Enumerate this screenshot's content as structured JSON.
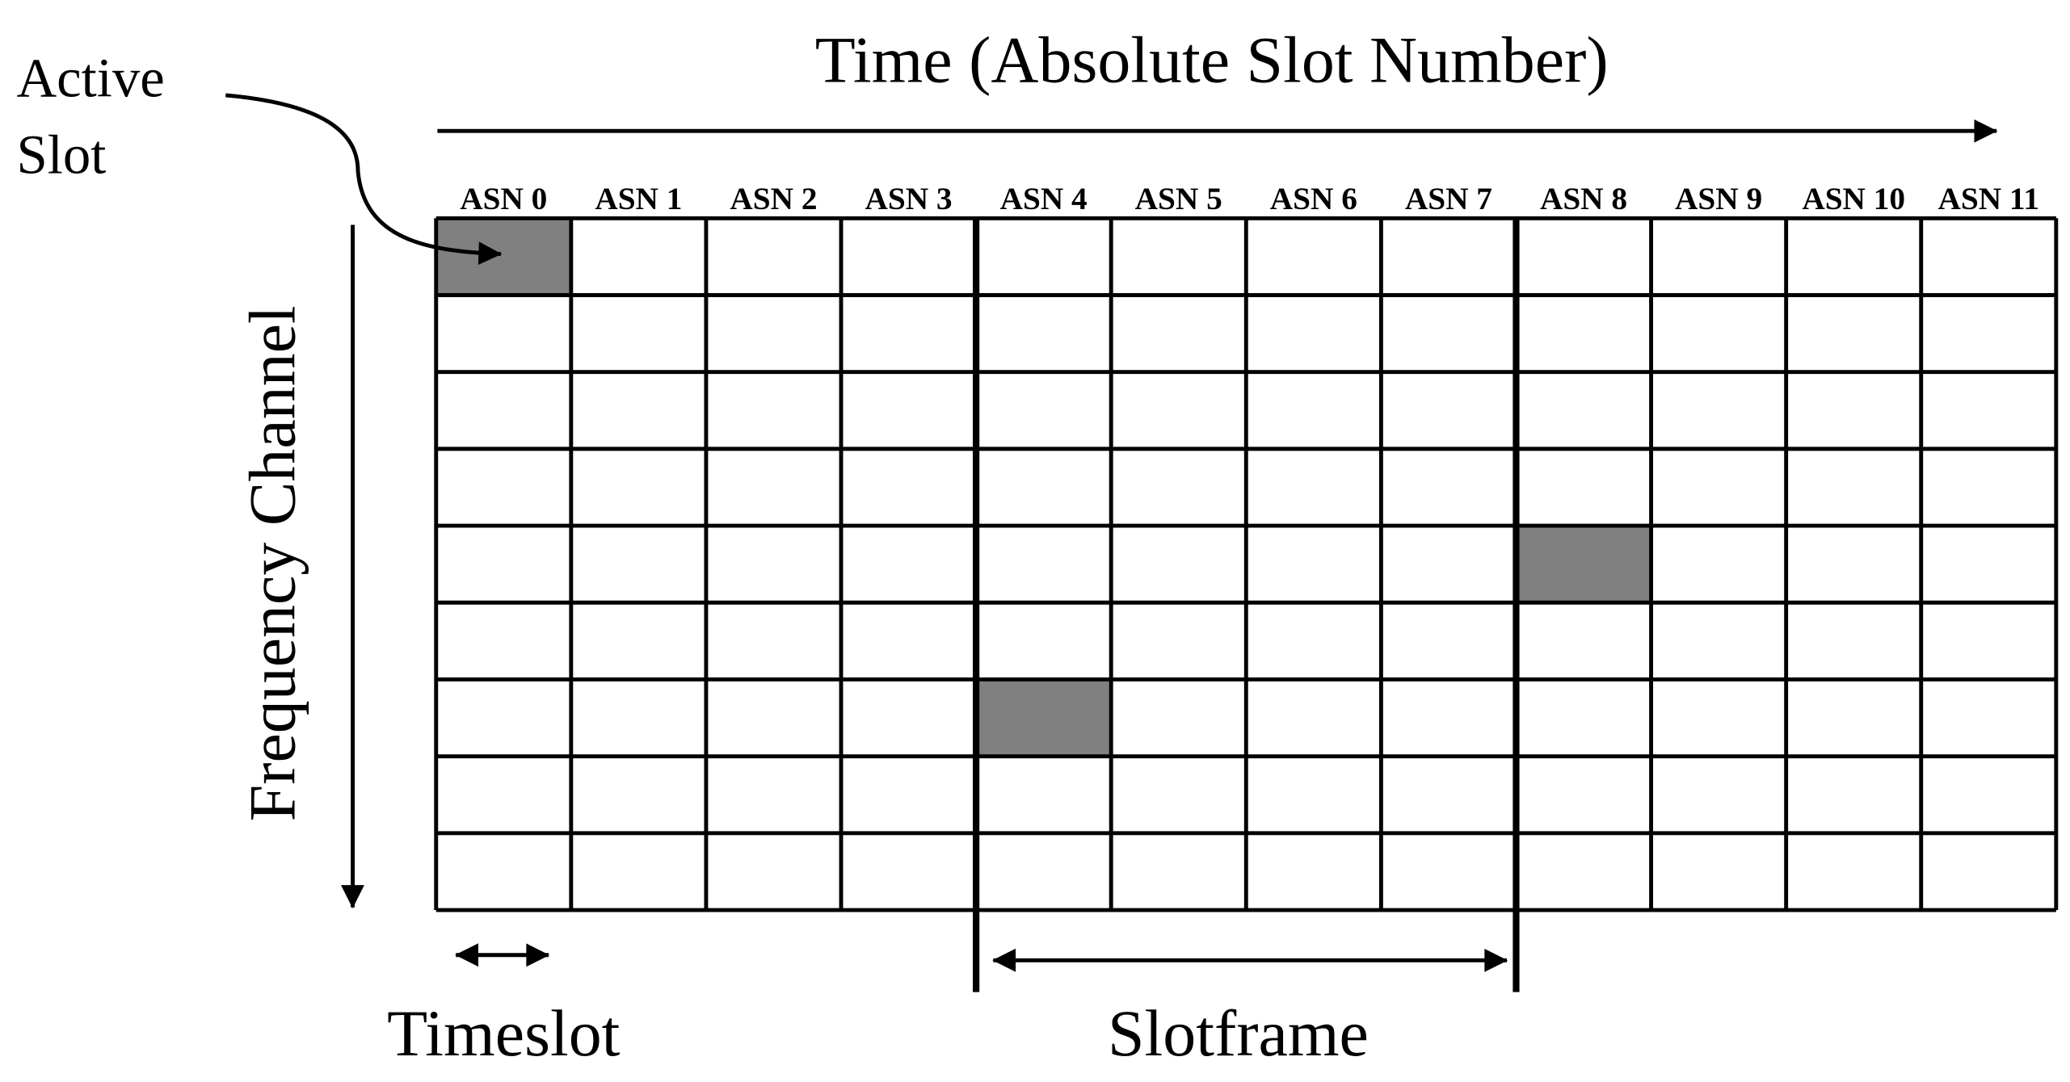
{
  "title": "Time (Absolute Slot Number)",
  "annotation": {
    "line1": "Active",
    "line2": "Slot"
  },
  "y_axis_label": "Frequency Channel",
  "asn_labels": [
    "ASN 0",
    "ASN 1",
    "ASN 2",
    "ASN 3",
    "ASN 4",
    "ASN 5",
    "ASN 6",
    "ASN 7",
    "ASN 8",
    "ASN 9",
    "ASN 10",
    "ASN 11"
  ],
  "timeslot_label": "Timeslot",
  "slotframe_label": "Slotframe"
}
